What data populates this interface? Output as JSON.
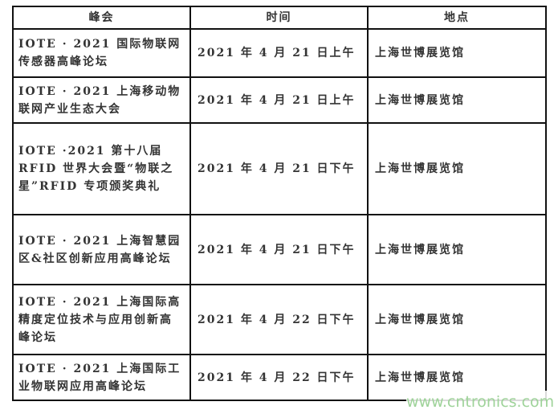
{
  "headers": [
    "峰会",
    "时间",
    "地点"
  ],
  "rows": [
    {
      "summit": "IOTE · 2021 国际物联网传感器高峰论坛",
      "time": "2021 年 4 月 21 日上午",
      "place": "上海世博展览馆"
    },
    {
      "summit": "IOTE · 2021 上海移动物联网产业生态大会",
      "time": "2021 年 4 月 21 日上午",
      "place": "上海世博展览馆"
    },
    {
      "summit": "IOTE ·2021 第十八届 RFID 世界大会暨“物联之星”RFID 专项颁奖典礼",
      "time": "2021 年 4 月 21 日下午",
      "place": "上海世博展览馆"
    },
    {
      "summit": "IOTE · 2021 上海智慧园区&社区创新应用高峰论坛",
      "time": "2021 年 4 月 21 日下午",
      "place": "上海世博展览馆"
    },
    {
      "summit": "IOTE · 2021 上海国际高精度定位技术与应用创新高峰论坛",
      "time": "2021 年 4 月 22 日下午",
      "place": "上海世博展览馆"
    },
    {
      "summit": "IOTE · 2021 上海国际工业物联网应用高峰论坛",
      "time": "2021 年 4 月 22 日下午",
      "place": "上海世博展览馆"
    }
  ],
  "watermark": "www.cntronics.com"
}
